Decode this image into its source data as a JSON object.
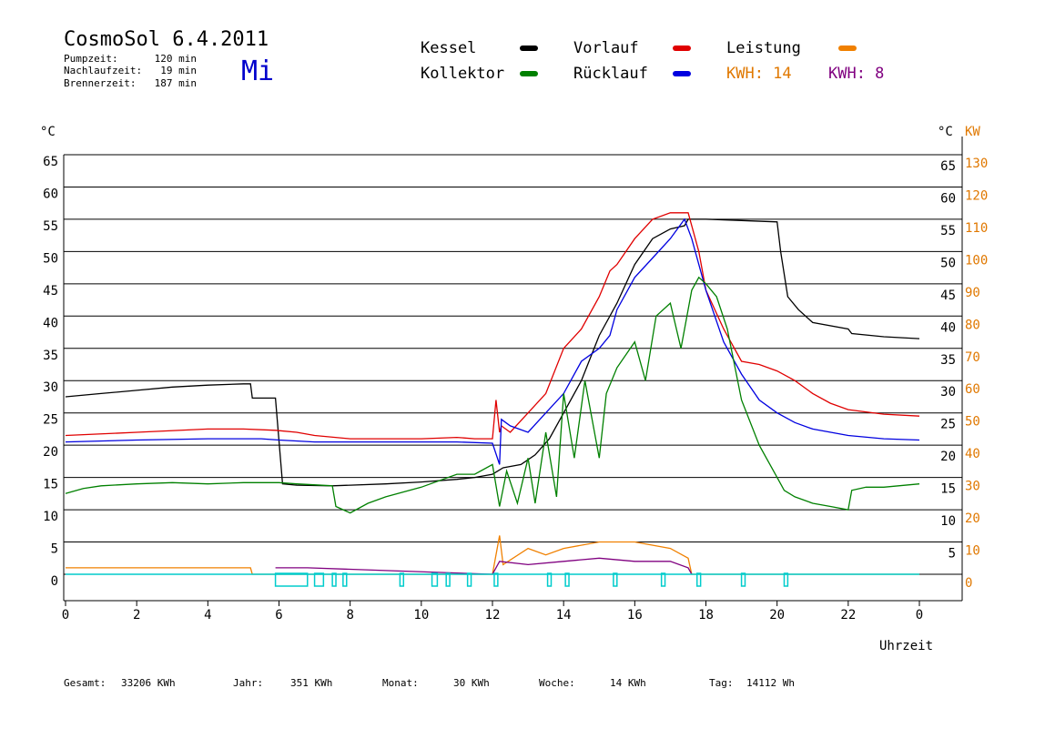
{
  "header": {
    "title": "CosmoSol 6.4.2011",
    "day_label": "Mi",
    "stats": [
      {
        "label": "Pumpzeit:",
        "value": "120 min"
      },
      {
        "label": "Nachlaufzeit:",
        "value": "19 min"
      },
      {
        "label": "Brennerzeit:",
        "value": "187 min"
      }
    ]
  },
  "legend": {
    "items": [
      {
        "label": "Kessel",
        "color": "#000000"
      },
      {
        "label": "Vorlauf",
        "color": "#e00000"
      },
      {
        "label": "Leistung",
        "color": "#f08000"
      },
      {
        "label": "Kollektor",
        "color": "#008000"
      },
      {
        "label": "Rücklauf",
        "color": "#0000e0"
      }
    ],
    "kwh_orange": "KWH: 14",
    "kwh_purple": "KWH: 8"
  },
  "axes": {
    "left_unit": "°C",
    "right_unit_c": "°C",
    "right_unit_kw": "KW",
    "x_label": "Uhrzeit",
    "x_ticks": [
      "0",
      "2",
      "4",
      "6",
      "8",
      "10",
      "12",
      "14",
      "16",
      "18",
      "20",
      "22",
      "0"
    ],
    "y_left_ticks": [
      "0",
      "5",
      "10",
      "15",
      "20",
      "25",
      "30",
      "35",
      "40",
      "45",
      "50",
      "55",
      "60",
      "65"
    ],
    "y_right_c_ticks": [
      "5",
      "10",
      "15",
      "20",
      "25",
      "30",
      "35",
      "40",
      "45",
      "50",
      "55",
      "60",
      "65"
    ],
    "y_right_kw_ticks": [
      "0",
      "10",
      "20",
      "30",
      "40",
      "50",
      "60",
      "70",
      "80",
      "90",
      "100",
      "110",
      "120",
      "130"
    ]
  },
  "footer": {
    "gesamt_label": "Gesamt:",
    "gesamt_value": "33206 KWh",
    "jahr_label": "Jahr:",
    "jahr_value": "351 KWh",
    "monat_label": "Monat:",
    "monat_value": "30 KWh",
    "woche_label": "Woche:",
    "woche_value": "14 KWh",
    "tag_label": "Tag:",
    "tag_value": "14112 Wh"
  },
  "chart_data": {
    "type": "line",
    "xlabel": "Uhrzeit",
    "ylabel": "°C",
    "xlim": [
      0,
      24
    ],
    "ylim": [
      0,
      65
    ],
    "y2lim": [
      0,
      130
    ],
    "grid": true,
    "series": [
      {
        "name": "Kessel",
        "color": "#000000",
        "x": [
          0,
          1,
          2,
          3,
          4,
          5,
          5.2,
          5.25,
          5.9,
          6.1,
          6.5,
          7.5,
          8,
          9,
          10,
          11,
          11.5,
          12,
          12.3,
          12.8,
          13.2,
          13.6,
          14,
          14.5,
          15,
          15.5,
          16,
          16.5,
          17,
          17.4,
          17.5,
          18,
          19,
          20,
          20.1,
          20.3,
          20.6,
          21,
          22,
          22.1,
          23,
          24
        ],
        "y": [
          27.5,
          28,
          28.5,
          29,
          29.3,
          29.5,
          29.5,
          27.3,
          27.3,
          14,
          13.8,
          13.7,
          13.8,
          14,
          14.3,
          14.7,
          15,
          15.5,
          16.5,
          17,
          18.5,
          21,
          25,
          30,
          37,
          42,
          48,
          52,
          53.5,
          54,
          55,
          55,
          54.8,
          54.6,
          50,
          43,
          41,
          39,
          38,
          37.3,
          36.8,
          36.5
        ]
      },
      {
        "name": "Vorlauf",
        "color": "#e00000",
        "x": [
          0,
          2,
          4,
          5,
          5.9,
          6.5,
          7,
          8,
          9,
          10,
          11,
          11.5,
          12,
          12.1,
          12.2,
          12.25,
          12.5,
          13,
          13.5,
          14,
          14.5,
          15,
          15.3,
          15.5,
          16,
          16.5,
          17,
          17.5,
          17.8,
          18,
          18.5,
          19,
          19.5,
          20,
          20.5,
          21,
          21.5,
          22,
          23,
          24
        ],
        "y": [
          21.5,
          22,
          22.5,
          22.5,
          22.3,
          22,
          21.5,
          21,
          21,
          21,
          21.2,
          21,
          21,
          27,
          22,
          23,
          22,
          25,
          28,
          35,
          38,
          43,
          47,
          48,
          52,
          55,
          56,
          56,
          50,
          44,
          38,
          33,
          32.5,
          31.5,
          30,
          28,
          26.5,
          25.5,
          24.8,
          24.5
        ]
      },
      {
        "name": "Rücklauf",
        "color": "#0000e0",
        "x": [
          0,
          2,
          4,
          5.5,
          6,
          7,
          8,
          9,
          10,
          11,
          12,
          12.2,
          12.25,
          12.5,
          13,
          13.5,
          14,
          14.5,
          15,
          15.3,
          15.5,
          16,
          16.5,
          17,
          17.4,
          17.6,
          18,
          18.5,
          19,
          19.5,
          20,
          20.5,
          21,
          22,
          23,
          24
        ],
        "y": [
          20.5,
          20.8,
          21,
          21,
          20.8,
          20.5,
          20.5,
          20.5,
          20.5,
          20.5,
          20.3,
          17,
          24,
          23,
          22,
          25,
          28,
          33,
          35,
          37,
          41,
          46,
          49,
          52,
          55,
          52,
          44,
          36,
          31,
          27,
          25,
          23.5,
          22.5,
          21.5,
          21,
          20.8
        ]
      },
      {
        "name": "Kollektor",
        "color": "#008000",
        "x": [
          0,
          0.5,
          1,
          2,
          3,
          4,
          5,
          6,
          6.5,
          7.5,
          7.6,
          8,
          8.5,
          9,
          10,
          11,
          11.5,
          12,
          12.2,
          12.4,
          12.7,
          13,
          13.2,
          13.5,
          13.8,
          14,
          14.3,
          14.6,
          15,
          15.2,
          15.5,
          16,
          16.3,
          16.6,
          17,
          17.3,
          17.6,
          17.8,
          18,
          18.3,
          18.6,
          19,
          19.5,
          20,
          20.2,
          20.5,
          21,
          21.5,
          22,
          22.1,
          22.5,
          23,
          24
        ],
        "y": [
          12.5,
          13.3,
          13.7,
          14,
          14.2,
          14,
          14.2,
          14.2,
          14,
          13.7,
          10.5,
          9.5,
          11,
          12,
          13.5,
          15.5,
          15.5,
          17,
          10.5,
          16,
          11,
          18,
          11,
          22,
          12,
          28,
          18,
          30,
          18,
          28,
          32,
          36,
          30,
          40,
          42,
          35,
          44,
          46,
          45,
          43,
          38,
          27,
          20,
          15,
          13,
          12,
          11,
          10.5,
          10,
          13,
          13.5,
          13.5,
          14
        ]
      },
      {
        "name": "Leistung",
        "color": "#f08000",
        "axis": "KW",
        "x": [
          0,
          5.2,
          5.25,
          12,
          12.2,
          12.3,
          13,
          13.5,
          14,
          15,
          16,
          17,
          17.5,
          17.6,
          24
        ],
        "y": [
          2,
          2,
          0,
          0,
          12,
          3,
          8,
          6,
          8,
          10,
          10,
          8,
          5,
          0,
          0
        ]
      },
      {
        "name": "KWH purple",
        "color": "#800080",
        "axis": "KW",
        "x": [
          5.9,
          6.8,
          12,
          12.2,
          13,
          14,
          15,
          16,
          17,
          17.5,
          17.6
        ],
        "y": [
          2,
          2,
          0,
          4,
          3,
          4,
          5,
          4,
          4,
          2,
          0
        ]
      }
    ]
  }
}
